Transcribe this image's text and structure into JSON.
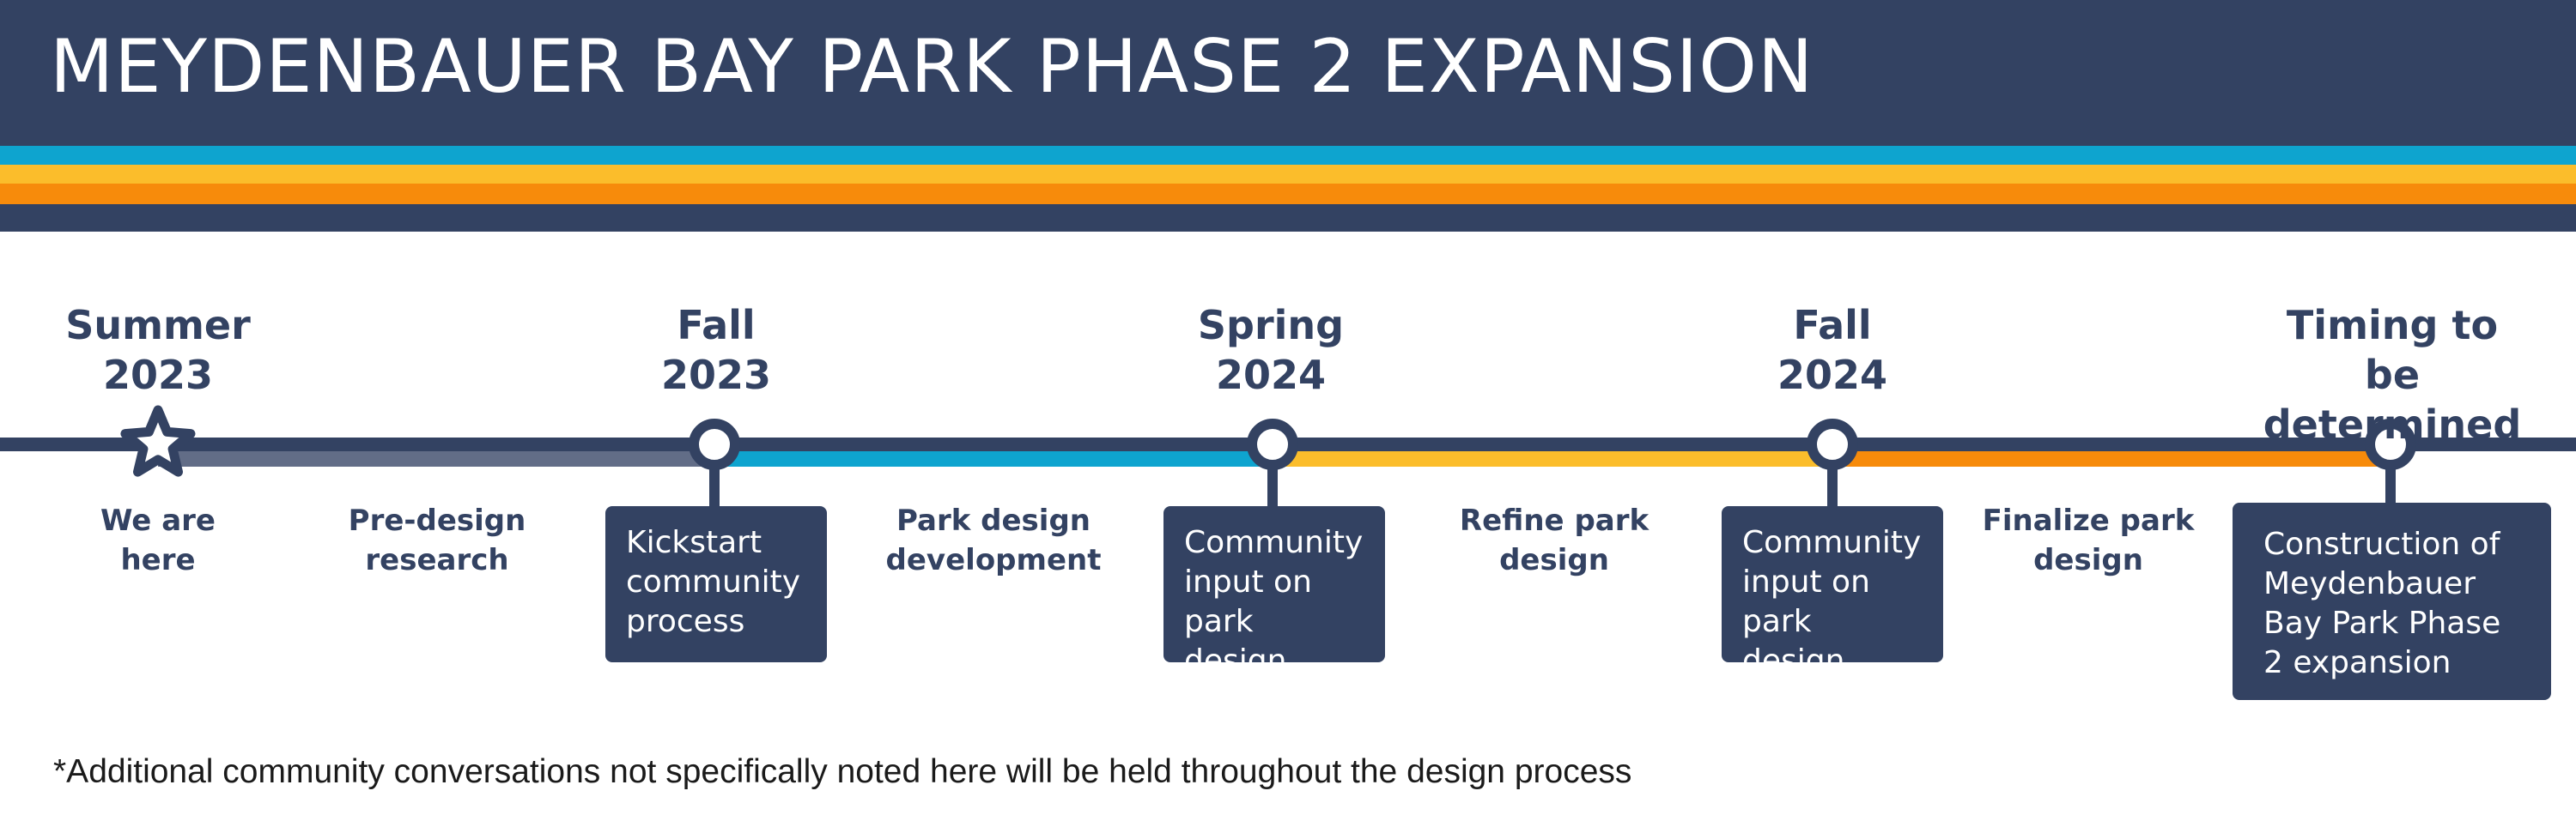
{
  "header": {
    "title": "MEYDENBAUER BAY PARK PHASE 2 EXPANSION"
  },
  "colors": {
    "navy": "#334262",
    "cyan": "#0ea4cf",
    "yellow": "#fbbd2b",
    "orange": "#f78b0b",
    "slate": "#626d87"
  },
  "stages": [
    {
      "label": "Summer\n2023",
      "marker": "star-icon"
    },
    {
      "label": "Fall\n2023",
      "marker": "circle-marker"
    },
    {
      "label": "Spring\n2024",
      "marker": "circle-marker"
    },
    {
      "label": "Fall\n2024",
      "marker": "circle-marker"
    },
    {
      "label": "Timing to be\ndetermined",
      "marker": "circle-marker"
    }
  ],
  "phases": [
    {
      "label": "We are\nhere",
      "color": "#626d87"
    },
    {
      "label": "Pre-design\nresearch",
      "color": "#626d87"
    },
    {
      "label": "Park design\ndevelopment",
      "color": "#0ea4cf"
    },
    {
      "label": "Refine park\ndesign",
      "color": "#fbbd2b"
    },
    {
      "label": "Finalize park\ndesign",
      "color": "#f78b0b"
    }
  ],
  "events": [
    {
      "label": "Kickstart\ncommunity\nprocess"
    },
    {
      "label": "Community\ninput on\npark design"
    },
    {
      "label": "Community\ninput on\npark design"
    },
    {
      "label": "Construction of\nMeydenbauer\nBay Park Phase\n2 expansion"
    }
  ],
  "footnote": "*Additional community conversations not specifically noted here will be held throughout the design process"
}
